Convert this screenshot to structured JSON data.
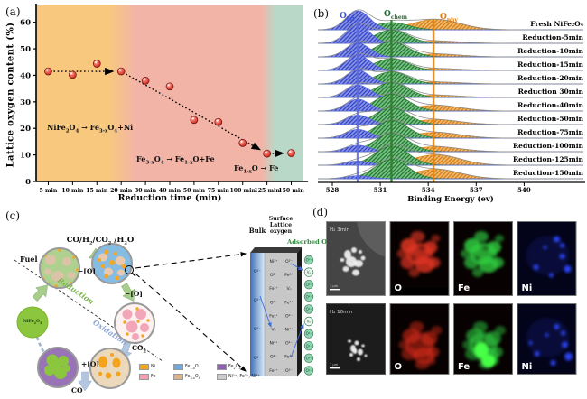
{
  "panel_tags": {
    "a": "(a)",
    "b": "(b)",
    "c": "(c)",
    "d": "(d)"
  },
  "chart_data": [
    {
      "panel": "a",
      "type": "scatter",
      "title": "",
      "xlabel": "Reduction time (min)",
      "ylabel": "Lattice oxygen content (%)",
      "categories": [
        "5 min",
        "10 min",
        "15 min",
        "20 min",
        "30 min",
        "40 min",
        "50 min",
        "75 min",
        "100 min",
        "125 min",
        "150 min"
      ],
      "values": [
        41.5,
        40.2,
        44.4,
        41.5,
        38.0,
        35.8,
        23.2,
        22.4,
        14.5,
        10.5,
        10.7
      ],
      "ylim": [
        0,
        65
      ],
      "yticks": [
        0,
        10,
        20,
        30,
        40,
        50,
        60
      ],
      "grid": false,
      "point_color": "#e0271b",
      "zones": [
        {
          "label": "NiFe<sub>2</sub>O<sub>4</sub> → Fe<sub>3-x</sub>O<sub>4</sub>+Ni",
          "color": "#f7c87e",
          "end_category": "20 min"
        },
        {
          "label": "Fe<sub>3-x</sub>O<sub>4</sub> → Fe<sub>1-x</sub>O+Fe",
          "color": "#f3b4a8",
          "end_category": "125 min"
        },
        {
          "label": "Fe<sub>1-x</sub>O → Fe",
          "color": "#b9d8c7",
          "end_category": "150 min"
        }
      ],
      "trend_arrows": [
        {
          "from_category": "5 min",
          "from_value": 41.5,
          "to_category": "20 min",
          "to_value": 41.5
        },
        {
          "from_category": "20 min",
          "from_value": 41.5,
          "to_category": "125 min",
          "to_value": 10.5
        },
        {
          "from_category": "125 min",
          "from_value": 10.5,
          "to_category": "150 min",
          "to_value": 10.7
        }
      ]
    },
    {
      "panel": "b",
      "type": "area",
      "title": "",
      "xlabel": "Binding Energy (ev)",
      "xticks": [
        "528",
        "531",
        "534",
        "537",
        "540"
      ],
      "xlim": [
        527.2,
        541.8
      ],
      "peak_labels": [
        {
          "text": "O<sub>lat</sub>",
          "color": "#3b4cd8"
        },
        {
          "text": "O<sub>chem</sub>",
          "color": "#1e6b2e"
        },
        {
          "text": "O<sub>phy</sub>",
          "color": "#e07b10"
        }
      ],
      "peaks": {
        "lat": {
          "center": 529.6,
          "sigma": 0.75,
          "fill": "#8a94e6",
          "hatch": "#2c3ec4",
          "line": "#5b6ae0"
        },
        "chem": {
          "center": 531.7,
          "sigma": 1.05,
          "fill": "#7dc286",
          "hatch": "#19742b",
          "line": "#2e7d32"
        },
        "phy": {
          "center": 534.5,
          "sigma": 1.5,
          "fill": "#f2ba6e",
          "hatch": "#d2790e",
          "line": "#e08214"
        }
      },
      "series": [
        {
          "label": "Fresh NiFe₂O₄",
          "lat": 1.0,
          "chem": 0.38,
          "phy": 0.55
        },
        {
          "label": "Reduction-5min",
          "lat": 0.95,
          "chem": 0.7,
          "phy": 0.12
        },
        {
          "label": "Reduction-10min",
          "lat": 0.72,
          "chem": 0.8,
          "phy": 0.15
        },
        {
          "label": "Reduction-15min",
          "lat": 0.8,
          "chem": 0.62,
          "phy": 0.1
        },
        {
          "label": "Reduction-20min",
          "lat": 0.72,
          "chem": 0.64,
          "phy": 0.1
        },
        {
          "label": "Reduction 30min",
          "lat": 0.66,
          "chem": 0.78,
          "phy": 0.12
        },
        {
          "label": "Reduction-40min",
          "lat": 0.62,
          "chem": 0.88,
          "phy": 0.3
        },
        {
          "label": "Reduction-50min",
          "lat": 0.5,
          "chem": 0.88,
          "phy": 0.26
        },
        {
          "label": "Reduction-75min",
          "lat": 0.46,
          "chem": 0.92,
          "phy": 0.3
        },
        {
          "label": "Reduction-100min",
          "lat": 0.34,
          "chem": 0.96,
          "phy": 0.26
        },
        {
          "label": "Reduction-125min",
          "lat": 0.22,
          "chem": 1.0,
          "phy": 0.55
        },
        {
          "label": "Reduction-150min",
          "lat": 0.16,
          "chem": 1.0,
          "phy": 0.5
        }
      ]
    }
  ],
  "panel_c": {
    "top_product_label": "CO/H<sub>2</sub>/CO<sub>2</sub> /H<sub>2</sub>O",
    "fuel_label": "Fuel",
    "reduction_label": "Reduction",
    "oxidation_label": "Oxidation",
    "minus_o_top": "−[O]",
    "minus_o_right": "−[O]",
    "plus_o": "+[O]",
    "co2_label": "CO<sub>2</sub>",
    "co_label": "CO",
    "carrier_label": "NiFe<sub>2</sub>O<sub>4</sub>",
    "bulk_label": "Bulk",
    "surface_label": "Surface<br>Lattice<br>oxygen",
    "adsorbed_label": "Adsorbed O",
    "adsorbed_color": "#2e8b3d",
    "reduction_color": "#7ab648",
    "oxidation_color": "#8ca6d8",
    "legend": [
      {
        "label": "Ni",
        "color": "#f7a51c"
      },
      {
        "label": "Fe<sub>1-x</sub>O",
        "color": "#6fa8dc"
      },
      {
        "label": "Fe<sub>2</sub>O<sub>3</sub>",
        "color": "#8e5fb5"
      },
      {
        "label": "Fe",
        "color": "#f49fb3"
      },
      {
        "label": "Fe<sub>3-x</sub>O<sub>4</sub>",
        "color": "#d8b48e"
      },
      {
        "label": "Ni²⁺, Fe²⁺, Ni³⁺",
        "color": "#cccccc"
      }
    ],
    "bulk_ions": [
      "O²⁻",
      "O²⁻",
      "O²⁻",
      "O²⁻"
    ],
    "surface_ions": [
      [
        "Ni²⁺",
        "O²⁻"
      ],
      [
        "O²⁻",
        "Fe²⁺"
      ],
      [
        "Fe²⁺",
        "Vₒ"
      ],
      [
        "O²⁻",
        "Fe²⁺"
      ],
      [
        "Fe²⁺",
        "O²⁻"
      ],
      [
        "Vₒ",
        "Ni²⁺"
      ],
      [
        "Ni²⁺",
        "O²⁻"
      ],
      [
        "O²⁻",
        "Fe²⁺"
      ],
      [
        "Fe²⁺",
        "O²⁻"
      ]
    ],
    "adsorbed_ions": [
      "O²⁻",
      "Vₒ",
      "O²⁻",
      "O²⁻",
      "O²⁻",
      "Vₒ",
      "O²⁻",
      "O²⁻",
      "O²⁻",
      "O²⁻"
    ]
  },
  "panel_d": {
    "rows": [
      {
        "sem_label": "H₂ 3min",
        "scale_label": "1 μm",
        "maps": [
          {
            "element": "O",
            "color": "#e03522"
          },
          {
            "element": "Fe",
            "color": "#2ecc40"
          },
          {
            "element": "Ni",
            "color": "#2a46ff"
          }
        ]
      },
      {
        "sem_label": "H₂ 10min",
        "scale_label": "1 μm",
        "maps": [
          {
            "element": "O",
            "color": "#d42a18"
          },
          {
            "element": "Fe",
            "color": "#2ecc40"
          },
          {
            "element": "Ni",
            "color": "#2a46ff"
          }
        ]
      }
    ]
  }
}
